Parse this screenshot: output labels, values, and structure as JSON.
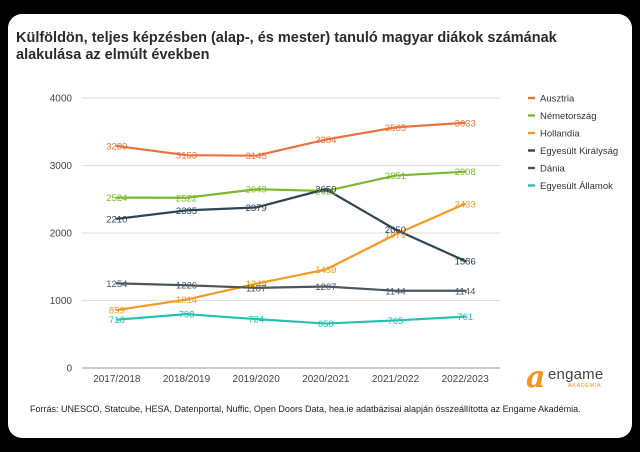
{
  "title": "Külföldön, teljes képzésben (alap-, és mester) tanuló magyar diákok számának alakulása az elmúlt években",
  "source": "Forrás: UNESCO, Statcube, HESA, Datenportal, Nuffic, Open Doors Data, hea.ie adatbázisai alapján összeállította az Engame Akadémia.",
  "logo": {
    "name": "engame",
    "sub": "AKADÉMIA",
    "glyph_text": "a"
  },
  "chart_data": {
    "type": "line",
    "categories": [
      "2017/2018",
      "2018/2019",
      "2019/2020",
      "2020/2021",
      "2021/2022",
      "2022/2023"
    ],
    "ylim": [
      0,
      4000
    ],
    "yticks": [
      0,
      1000,
      2000,
      3000,
      4000
    ],
    "grid": true,
    "legend": "right",
    "series": [
      {
        "name": "Ausztria",
        "color": "#e8743b",
        "values": [
          3289,
          3153,
          3145,
          3384,
          3565,
          3633
        ]
      },
      {
        "name": "Németország",
        "color": "#7cb82f",
        "values": [
          2524,
          2522,
          2649,
          2622,
          2851,
          2908
        ]
      },
      {
        "name": "Hollandia",
        "color": "#f29b22",
        "values": [
          859,
          1014,
          1249,
          1459,
          1979,
          2433
        ]
      },
      {
        "name": "Egyesült Királyság",
        "color": "#2e4553",
        "values": [
          2210,
          2335,
          2379,
          2650,
          2050,
          1586
        ]
      },
      {
        "name": "Dánia",
        "color": "#4a5761",
        "values": [
          1254,
          1226,
          1187,
          1207,
          1144,
          1144
        ]
      },
      {
        "name": "Egyesült Államok",
        "color": "#26c2b0",
        "values": [
          716,
          798,
          724,
          658,
          705,
          761
        ]
      }
    ]
  }
}
